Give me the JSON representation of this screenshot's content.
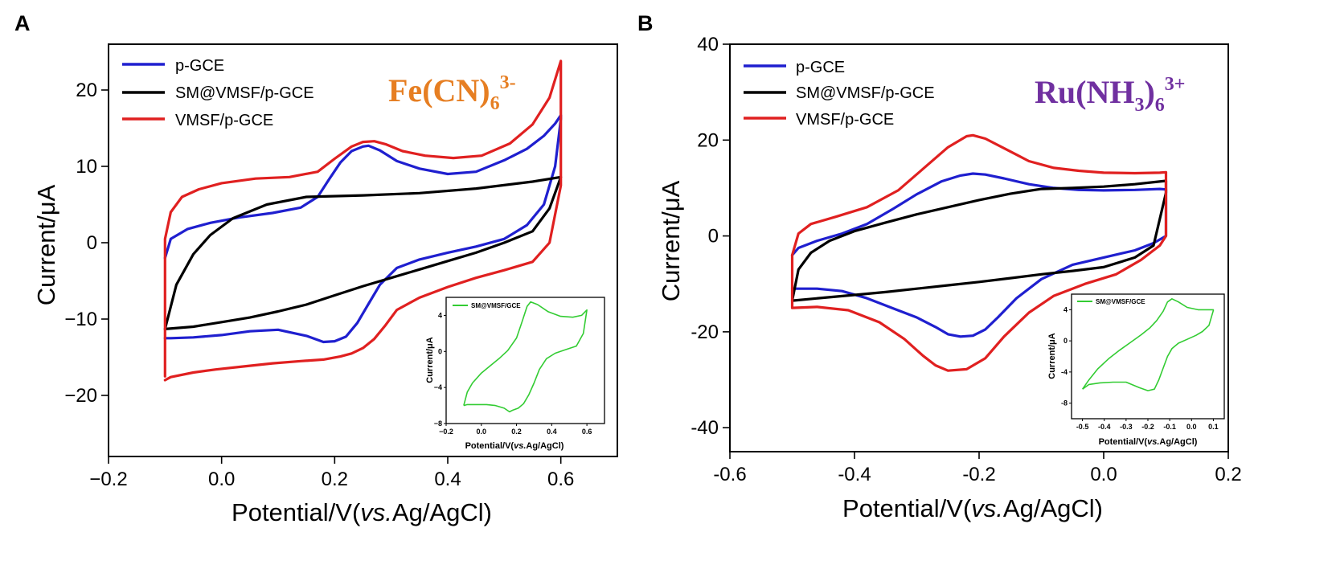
{
  "figure": {
    "panels": [
      {
        "letter": "A",
        "species_main": "Fe(CN)",
        "species_sub": "6",
        "species_sup": "3-",
        "species_color": "#e67e22"
      },
      {
        "letter": "B",
        "species_main": "Ru(NH",
        "species_sub1": "3",
        "species_mid": ")",
        "species_sub": "6",
        "species_sup": "3+",
        "species_color": "#7030a0"
      }
    ]
  },
  "chart_data": [
    {
      "type": "line",
      "panel": "A",
      "title": "",
      "xlabel_main": "Potential/V(",
      "xlabel_italic": "vs.",
      "xlabel_tail": "Ag/AgCl)",
      "ylabel": "Current/μA",
      "xlim": [
        -0.2,
        0.7
      ],
      "ylim": [
        -28,
        26
      ],
      "xticks": [
        -0.2,
        0.0,
        0.2,
        0.4,
        0.6
      ],
      "xtick_labels": [
        "−0.2",
        "0.0",
        "0.2",
        "0.4",
        "0.6"
      ],
      "yticks": [
        -20,
        -10,
        0,
        10,
        20
      ],
      "ytick_labels": [
        "−20",
        "−10",
        "0",
        "10",
        "20"
      ],
      "legend_position": "top-left",
      "series": [
        {
          "name": "p-GCE",
          "color": "#1f1fcf",
          "x": [
            -0.1,
            -0.09,
            -0.06,
            -0.02,
            0.03,
            0.09,
            0.14,
            0.17,
            0.19,
            0.21,
            0.23,
            0.25,
            0.26,
            0.28,
            0.31,
            0.35,
            0.4,
            0.45,
            0.5,
            0.54,
            0.57,
            0.59,
            0.6,
            0.6,
            0.59,
            0.57,
            0.54,
            0.5,
            0.45,
            0.4,
            0.35,
            0.31,
            0.28,
            0.26,
            0.24,
            0.22,
            0.2,
            0.18,
            0.15,
            0.1,
            0.05,
            0.0,
            -0.05,
            -0.09,
            -0.1
          ],
          "y": [
            -2,
            0.5,
            1.8,
            2.6,
            3.3,
            3.9,
            4.6,
            6.0,
            8.3,
            10.5,
            12.0,
            12.6,
            12.7,
            12.1,
            10.7,
            9.7,
            9.0,
            9.3,
            10.8,
            12.3,
            14.0,
            15.6,
            16.7,
            16.2,
            10.0,
            5.0,
            2.3,
            0.5,
            -0.5,
            -1.3,
            -2.2,
            -3.3,
            -5.5,
            -8.0,
            -10.5,
            -12.3,
            -12.9,
            -13.0,
            -12.2,
            -11.4,
            -11.6,
            -12.1,
            -12.4,
            -12.5,
            -12.5
          ]
        },
        {
          "name": "SM@VMSF/p-GCE",
          "color": "#000000",
          "x": [
            -0.1,
            -0.08,
            -0.05,
            -0.02,
            0.02,
            0.08,
            0.15,
            0.25,
            0.35,
            0.45,
            0.55,
            0.6,
            0.6,
            0.58,
            0.55,
            0.5,
            0.45,
            0.4,
            0.35,
            0.3,
            0.25,
            0.2,
            0.15,
            0.1,
            0.05,
            0.0,
            -0.05,
            -0.1
          ],
          "y": [
            -11.3,
            -5.5,
            -1.5,
            1.0,
            3.2,
            5.0,
            6.0,
            6.2,
            6.5,
            7.1,
            8.0,
            8.6,
            8.6,
            4.5,
            1.5,
            0.0,
            -1.3,
            -2.4,
            -3.5,
            -4.6,
            -5.7,
            -6.9,
            -8.1,
            -9.0,
            -9.8,
            -10.4,
            -11.0,
            -11.3
          ]
        },
        {
          "name": "VMSF/p-GCE",
          "color": "#e02020",
          "x": [
            -0.1,
            -0.1,
            -0.09,
            -0.07,
            -0.04,
            0.0,
            0.06,
            0.12,
            0.17,
            0.2,
            0.23,
            0.25,
            0.27,
            0.29,
            0.32,
            0.36,
            0.41,
            0.46,
            0.51,
            0.55,
            0.58,
            0.6,
            0.6,
            0.6,
            0.58,
            0.55,
            0.5,
            0.45,
            0.4,
            0.35,
            0.31,
            0.29,
            0.27,
            0.25,
            0.23,
            0.21,
            0.18,
            0.14,
            0.09,
            0.04,
            -0.01,
            -0.05,
            -0.09,
            -0.1,
            -0.1
          ],
          "y": [
            -17.5,
            0.5,
            4.0,
            6.0,
            7.0,
            7.8,
            8.4,
            8.6,
            9.3,
            11.0,
            12.6,
            13.2,
            13.3,
            12.9,
            12.0,
            11.4,
            11.1,
            11.4,
            13.0,
            15.5,
            19.0,
            23.8,
            22.0,
            7.5,
            0.0,
            -2.5,
            -3.6,
            -4.6,
            -5.8,
            -7.2,
            -8.8,
            -10.8,
            -12.6,
            -13.8,
            -14.5,
            -14.9,
            -15.3,
            -15.5,
            -15.8,
            -16.2,
            -16.6,
            -17.0,
            -17.6,
            -18.0,
            -18.0
          ]
        }
      ],
      "inset": {
        "type": "line",
        "legend": "SM@VMSF/GCE",
        "xlabel_main": "Potential/V(",
        "xlabel_italic": "vs.",
        "xlabel_tail": "Ag/AgCl)",
        "ylabel": "Current/μA",
        "xlim": [
          -0.2,
          0.7
        ],
        "ylim": [
          -8,
          6
        ],
        "xticks": [
          -0.2,
          0.0,
          0.2,
          0.4,
          0.6
        ],
        "xtick_labels": [
          "−0.2",
          "0.0",
          "0.2",
          "0.4",
          "0.6"
        ],
        "yticks": [
          -8,
          -4,
          0,
          4
        ],
        "ytick_labels": [
          "−8",
          "−4",
          "0",
          "4"
        ],
        "color": "#33cc33",
        "x": [
          -0.1,
          -0.08,
          -0.05,
          0.0,
          0.05,
          0.1,
          0.15,
          0.2,
          0.23,
          0.26,
          0.28,
          0.32,
          0.38,
          0.45,
          0.52,
          0.57,
          0.6,
          0.6,
          0.58,
          0.54,
          0.48,
          0.42,
          0.37,
          0.33,
          0.3,
          0.27,
          0.24,
          0.21,
          0.18,
          0.16,
          0.13,
          0.08,
          0.03,
          -0.03,
          -0.08,
          -0.1
        ],
        "y": [
          -6.0,
          -4.5,
          -3.5,
          -2.4,
          -1.6,
          -0.8,
          0.1,
          1.5,
          3.2,
          5.0,
          5.5,
          5.2,
          4.4,
          3.9,
          3.8,
          4.0,
          4.6,
          4.6,
          2.0,
          0.6,
          0.2,
          -0.2,
          -0.8,
          -2.0,
          -3.5,
          -4.8,
          -5.8,
          -6.3,
          -6.5,
          -6.7,
          -6.3,
          -6.0,
          -5.9,
          -5.9,
          -5.9,
          -6.0
        ]
      }
    },
    {
      "type": "line",
      "panel": "B",
      "title": "",
      "xlabel_main": "Potential/V(",
      "xlabel_italic": "vs.",
      "xlabel_tail": "Ag/AgCl)",
      "ylabel": "Current/μA",
      "xlim": [
        -0.6,
        0.2
      ],
      "ylim": [
        -45,
        40
      ],
      "xticks": [
        -0.6,
        -0.4,
        -0.2,
        0.0,
        0.2
      ],
      "xtick_labels": [
        "-0.6",
        "-0.4",
        "-0.2",
        "0.0",
        "0.2"
      ],
      "yticks": [
        -40,
        -20,
        0,
        20,
        40
      ],
      "ytick_labels": [
        "-40",
        "-20",
        "0",
        "20",
        "40"
      ],
      "legend_position": "top-left",
      "series": [
        {
          "name": "p-GCE",
          "color": "#1f1fcf",
          "x": [
            -0.5,
            -0.49,
            -0.46,
            -0.42,
            -0.38,
            -0.34,
            -0.3,
            -0.26,
            -0.23,
            -0.21,
            -0.19,
            -0.16,
            -0.12,
            -0.08,
            -0.04,
            0.0,
            0.05,
            0.09,
            0.1,
            0.1,
            0.08,
            0.05,
            0.0,
            -0.05,
            -0.1,
            -0.14,
            -0.17,
            -0.19,
            -0.21,
            -0.23,
            -0.25,
            -0.27,
            -0.3,
            -0.34,
            -0.38,
            -0.42,
            -0.46,
            -0.5
          ],
          "y": [
            -4.0,
            -2.5,
            -1.0,
            0.5,
            2.5,
            5.5,
            8.7,
            11.4,
            12.6,
            13.0,
            12.8,
            12.0,
            10.8,
            10.0,
            9.6,
            9.5,
            9.6,
            9.8,
            9.7,
            0.0,
            -1.5,
            -3.0,
            -4.5,
            -6.0,
            -9.0,
            -13.0,
            -17.0,
            -19.5,
            -20.8,
            -21.0,
            -20.5,
            -19.0,
            -17.0,
            -15.0,
            -13.0,
            -11.5,
            -11.0,
            -11.0
          ]
        },
        {
          "name": "SM@VMSF/p-GCE",
          "color": "#000000",
          "x": [
            -0.5,
            -0.49,
            -0.47,
            -0.44,
            -0.4,
            -0.35,
            -0.3,
            -0.25,
            -0.2,
            -0.15,
            -0.1,
            -0.05,
            0.0,
            0.05,
            0.1,
            0.1,
            0.08,
            0.05,
            0.0,
            -0.05,
            -0.1,
            -0.15,
            -0.2,
            -0.25,
            -0.3,
            -0.35,
            -0.4,
            -0.45,
            -0.5
          ],
          "y": [
            -13.5,
            -7.0,
            -3.5,
            -1.0,
            1.0,
            2.8,
            4.5,
            6.0,
            7.5,
            8.8,
            9.8,
            10.0,
            10.3,
            10.8,
            11.5,
            9.0,
            -2.0,
            -4.5,
            -6.5,
            -7.3,
            -8.0,
            -8.8,
            -9.6,
            -10.3,
            -11.0,
            -11.7,
            -12.3,
            -12.9,
            -13.5
          ]
        },
        {
          "name": "VMSF/p-GCE",
          "color": "#e02020",
          "x": [
            -0.5,
            -0.5,
            -0.49,
            -0.47,
            -0.43,
            -0.38,
            -0.33,
            -0.29,
            -0.25,
            -0.22,
            -0.21,
            -0.19,
            -0.16,
            -0.12,
            -0.08,
            -0.04,
            0.0,
            0.05,
            0.09,
            0.1,
            0.1,
            0.09,
            0.06,
            0.02,
            -0.03,
            -0.08,
            -0.12,
            -0.16,
            -0.19,
            -0.22,
            -0.25,
            -0.27,
            -0.29,
            -0.32,
            -0.36,
            -0.41,
            -0.46,
            -0.5
          ],
          "y": [
            -15.0,
            -4.0,
            0.5,
            2.5,
            4.0,
            6.0,
            9.5,
            14.0,
            18.5,
            20.8,
            21.0,
            20.3,
            18.3,
            15.6,
            14.2,
            13.6,
            13.2,
            13.1,
            13.2,
            13.3,
            0.0,
            -2.0,
            -5.0,
            -8.0,
            -10.0,
            -12.5,
            -16.0,
            -21.0,
            -25.5,
            -27.8,
            -28.1,
            -27.0,
            -25.0,
            -21.5,
            -18.0,
            -15.5,
            -14.8,
            -15.0
          ]
        }
      ],
      "inset": {
        "type": "line",
        "legend": "SM@VMSF/GCE",
        "xlabel_main": "Potential/V(",
        "xlabel_italic": "vs.",
        "xlabel_tail": "Ag/AgCl)",
        "ylabel": "Current/μA",
        "xlim": [
          -0.55,
          0.15
        ],
        "ylim": [
          -10,
          6
        ],
        "xticks": [
          -0.5,
          -0.4,
          -0.3,
          -0.2,
          -0.1,
          0.0,
          0.1
        ],
        "xtick_labels": [
          "-0.5",
          "-0.4",
          "-0.3",
          "-0.2",
          "-0.1",
          "0.0",
          "0.1"
        ],
        "yticks": [
          -8,
          -4,
          0,
          4
        ],
        "ytick_labels": [
          "-8",
          "-4",
          "0",
          "4"
        ],
        "color": "#33cc33",
        "x": [
          -0.5,
          -0.47,
          -0.43,
          -0.38,
          -0.33,
          -0.28,
          -0.23,
          -0.19,
          -0.16,
          -0.13,
          -0.11,
          -0.09,
          -0.06,
          -0.02,
          0.03,
          0.07,
          0.1,
          0.1,
          0.08,
          0.05,
          0.02,
          -0.02,
          -0.06,
          -0.09,
          -0.11,
          -0.13,
          -0.15,
          -0.17,
          -0.2,
          -0.24,
          -0.3,
          -0.36,
          -0.42,
          -0.47,
          -0.5
        ],
        "y": [
          -6.2,
          -5.0,
          -3.6,
          -2.3,
          -1.2,
          -0.2,
          0.8,
          1.7,
          2.6,
          3.8,
          5.0,
          5.4,
          5.0,
          4.3,
          4.0,
          4.0,
          4.0,
          3.9,
          2.0,
          1.2,
          0.7,
          0.2,
          -0.3,
          -1.0,
          -2.0,
          -3.5,
          -5.0,
          -6.2,
          -6.4,
          -6.0,
          -5.3,
          -5.3,
          -5.4,
          -5.6,
          -6.2
        ]
      }
    }
  ]
}
